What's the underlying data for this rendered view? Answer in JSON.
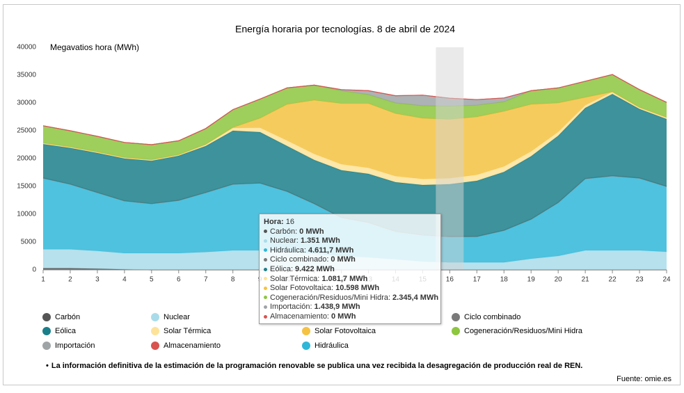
{
  "chart_data": {
    "type": "stacked-area",
    "title": "Energía horaria por tecnologías. 8 de abril de 2024",
    "y_label": "Megavatios hora (MWh)",
    "x": [
      1,
      2,
      3,
      4,
      5,
      6,
      7,
      8,
      9,
      10,
      11,
      12,
      13,
      14,
      15,
      16,
      17,
      18,
      19,
      20,
      21,
      22,
      23,
      24
    ],
    "xlim": [
      1,
      24
    ],
    "xticks": [
      1,
      2,
      3,
      4,
      5,
      6,
      7,
      8,
      9,
      10,
      11,
      12,
      13,
      14,
      15,
      16,
      17,
      18,
      19,
      20,
      21,
      22,
      23,
      24
    ],
    "ylim": [
      0,
      40000
    ],
    "yticks": [
      0,
      5000,
      10000,
      15000,
      20000,
      25000,
      30000,
      35000,
      40000
    ],
    "grid": false,
    "series": [
      {
        "name": "Carbón",
        "color": "#555555",
        "values": [
          300,
          300,
          200,
          100,
          0,
          0,
          0,
          0,
          0,
          0,
          0,
          0,
          0,
          0,
          0,
          0,
          0,
          0,
          0,
          0,
          0,
          0,
          0,
          0
        ]
      },
      {
        "name": "Nuclear",
        "color": "#a9dcea",
        "values": [
          3400,
          3400,
          3200,
          2900,
          3000,
          3000,
          3200,
          3500,
          3500,
          3250,
          2900,
          2500,
          2250,
          1900,
          1500,
          1351,
          1350,
          1350,
          2000,
          2500,
          3500,
          3500,
          3500,
          3250
        ]
      },
      {
        "name": "Hidráulica",
        "color": "#2fb7d8",
        "values": [
          12800,
          11700,
          10500,
          9400,
          8900,
          9500,
          10700,
          11900,
          12100,
          10850,
          9000,
          6900,
          6250,
          5000,
          4750,
          4611.7,
          4650,
          5750,
          7100,
          9600,
          12900,
          13400,
          13000,
          11750
        ]
      },
      {
        "name": "Ciclo combinado",
        "color": "#7a7a7a",
        "values": [
          0,
          0,
          0,
          0,
          0,
          0,
          0,
          0,
          0,
          0,
          0,
          0,
          0,
          0,
          0,
          0,
          0,
          0,
          0,
          0,
          0,
          0,
          0,
          0
        ]
      },
      {
        "name": "Eólica",
        "color": "#1b7f89",
        "values": [
          6100,
          6500,
          7100,
          7600,
          7700,
          8000,
          8350,
          9600,
          9150,
          8150,
          7850,
          8500,
          8750,
          8850,
          9000,
          9422,
          10000,
          10500,
          11300,
          12000,
          12700,
          14700,
          12400,
          12100
        ]
      },
      {
        "name": "Solar Térmica",
        "color": "#fde39a",
        "values": [
          200,
          200,
          200,
          200,
          200,
          200,
          300,
          500,
          800,
          1000,
          1100,
          1100,
          1100,
          1100,
          1100,
          1081.7,
          1100,
          1000,
          900,
          700,
          500,
          400,
          300,
          300
        ]
      },
      {
        "name": "Solar Fotovoltaica",
        "color": "#f5c242",
        "values": [
          0,
          0,
          0,
          0,
          0,
          0,
          0,
          100,
          1700,
          6500,
          9650,
          10900,
          11550,
          11250,
          10900,
          10598,
          10400,
          9900,
          8450,
          5200,
          1400,
          0,
          0,
          0
        ]
      },
      {
        "name": "Cogeneración/Residuos/Mini Hidra",
        "color": "#8dc63f",
        "values": [
          3100,
          2900,
          2800,
          2700,
          2700,
          2500,
          2850,
          3200,
          3450,
          2950,
          2700,
          2300,
          1600,
          1900,
          2250,
          2345.4,
          2100,
          1700,
          2450,
          2700,
          2900,
          3100,
          3200,
          2700
        ]
      },
      {
        "name": "Importación",
        "color": "#9fa4a7",
        "values": [
          0,
          0,
          0,
          0,
          0,
          0,
          0,
          0,
          0,
          0,
          0,
          200,
          700,
          1300,
          1900,
          1438.9,
          1000,
          700,
          0,
          0,
          0,
          0,
          0,
          0
        ]
      },
      {
        "name": "Almacenamiento",
        "color": "#d9534f",
        "values": [
          0,
          0,
          0,
          0,
          0,
          0,
          0,
          0,
          0,
          0,
          0,
          0,
          0,
          0,
          0,
          0,
          0,
          0,
          0,
          0,
          0,
          0,
          0,
          0
        ]
      }
    ],
    "tooltip": {
      "label": "Hora:",
      "value": 16,
      "items": [
        {
          "label": "Carbón:",
          "value_label": "0 MWh"
        },
        {
          "label": "Nuclear:",
          "value_label": "1.351 MWh"
        },
        {
          "label": "Hidráulica:",
          "value_label": "4.611,7 MWh"
        },
        {
          "label": "Ciclo combinado:",
          "value_label": "0 MWh"
        },
        {
          "label": "Eólica:",
          "value_label": "9.422 MWh"
        },
        {
          "label": "Solar Térmica:",
          "value_label": "1.081,7 MWh"
        },
        {
          "label": "Solar Fotovoltaica:",
          "value_label": "10.598 MWh"
        },
        {
          "label": "Cogeneración/Residuos/Mini Hidra:",
          "value_label": "2.345,4 MWh"
        },
        {
          "label": "Importación:",
          "value_label": "1.438,9 MWh"
        },
        {
          "label": "Almacenamiento:",
          "value_label": "0 MWh"
        }
      ]
    },
    "note": "La información definitiva de la estimación de la programación renovable se publica una vez recibida la desagregación de producción real de REN.",
    "source": "Fuente: omie.es"
  }
}
